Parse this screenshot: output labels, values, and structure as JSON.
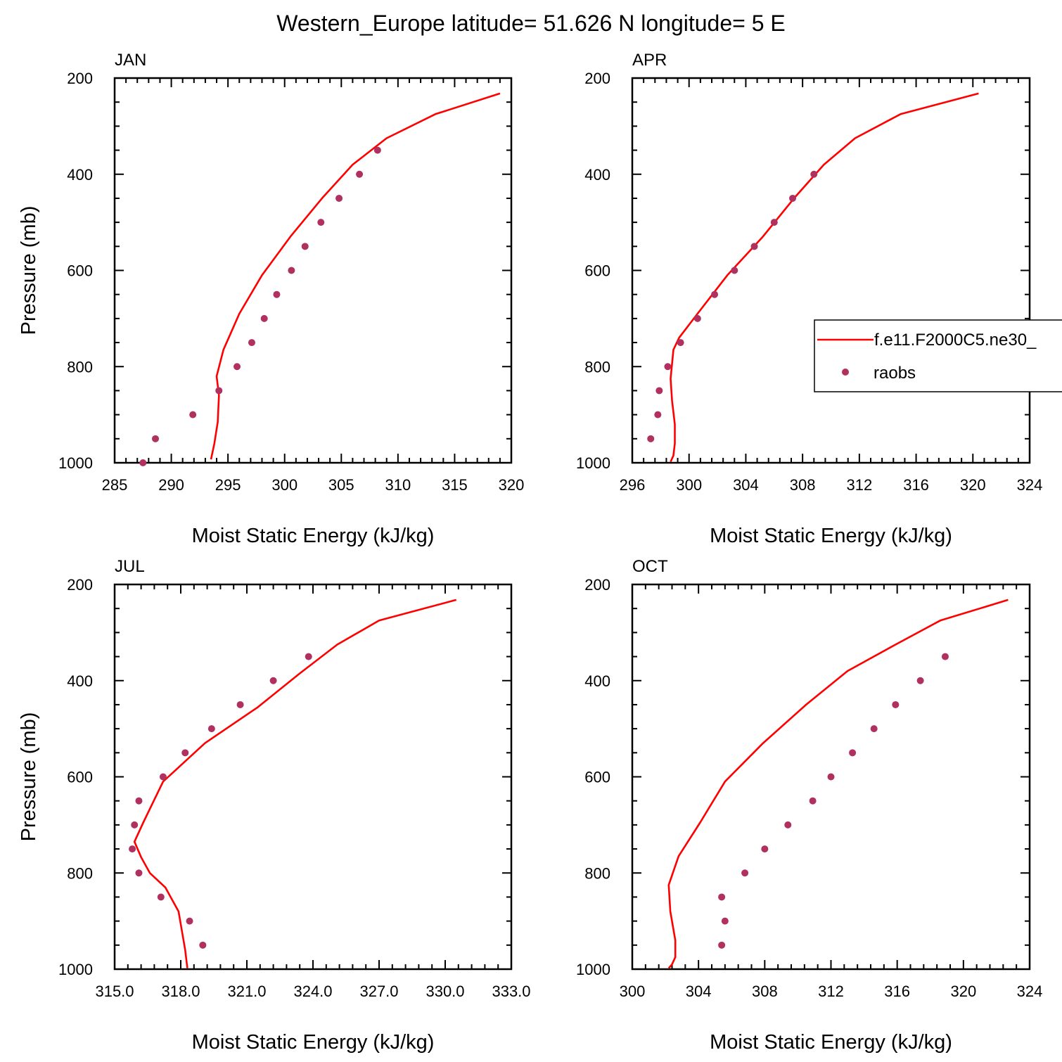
{
  "title": "Western_Europe  latitude= 51.626 N longitude= 5 E",
  "legend": {
    "model_label": "f.e11.F2000C5.ne30_",
    "obs_label": "raobs",
    "model_color": "#ff0000",
    "obs_color": "#b03060"
  },
  "chart_data": [
    {
      "type": "line",
      "panel": "JAN",
      "xlabel": "Moist Static Energy (kJ/kg)",
      "ylabel": "Pressure (mb)",
      "xlim": [
        285,
        320
      ],
      "ylim": [
        200,
        1000
      ],
      "xticks": [
        "285",
        "290",
        "295",
        "300",
        "305",
        "310",
        "315",
        "320"
      ],
      "yticks": [
        "200",
        "400",
        "600",
        "800",
        "1000"
      ],
      "series": [
        {
          "name": "f.e11.F2000C5.ne30_",
          "x": [
            319.0,
            313.3,
            309.0,
            306.0,
            303.3,
            300.5,
            298.0,
            296.0,
            294.6,
            294.0,
            294.2,
            294.1,
            293.8,
            293.5
          ],
          "p": [
            232,
            275,
            325,
            380,
            450,
            530,
            610,
            690,
            765,
            820,
            860,
            915,
            960,
            993
          ]
        },
        {
          "name": "raobs",
          "x": [
            308.2,
            306.6,
            304.8,
            303.2,
            301.8,
            300.6,
            299.3,
            298.2,
            297.1,
            295.8,
            294.2,
            291.9,
            288.6,
            287.5
          ],
          "p": [
            350,
            400,
            450,
            500,
            550,
            600,
            650,
            700,
            750,
            800,
            850,
            900,
            950,
            1000
          ]
        }
      ]
    },
    {
      "type": "line",
      "panel": "APR",
      "xlabel": "Moist Static Energy (kJ/kg)",
      "ylabel": "",
      "xlim": [
        296,
        324
      ],
      "ylim": [
        200,
        1000
      ],
      "xticks": [
        "296",
        "300",
        "304",
        "308",
        "312",
        "316",
        "320",
        "324"
      ],
      "yticks": [
        "200",
        "400",
        "600",
        "800",
        "1000"
      ],
      "series": [
        {
          "name": "f.e11.F2000C5.ne30_",
          "x": [
            320.4,
            314.9,
            311.7,
            309.5,
            307.4,
            305.2,
            302.7,
            300.6,
            299.3,
            298.9,
            298.7,
            298.8,
            299.0,
            299.0,
            298.9,
            298.7
          ],
          "p": [
            232,
            275,
            325,
            380,
            450,
            530,
            610,
            690,
            740,
            765,
            825,
            870,
            920,
            960,
            985,
            998
          ]
        },
        {
          "name": "raobs",
          "x": [
            308.8,
            307.3,
            306.0,
            304.6,
            303.2,
            301.8,
            300.6,
            299.4,
            298.5,
            297.9,
            297.8,
            297.3
          ],
          "p": [
            400,
            450,
            500,
            550,
            600,
            650,
            700,
            750,
            800,
            850,
            900,
            950
          ]
        }
      ]
    },
    {
      "type": "line",
      "panel": "JUL",
      "xlabel": "Moist Static Energy (kJ/kg)",
      "ylabel": "Pressure (mb)",
      "xlim": [
        315.0,
        333.0
      ],
      "ylim": [
        200,
        1000
      ],
      "xticks": [
        "315.0",
        "318.0",
        "321.0",
        "324.0",
        "327.0",
        "330.0",
        "333.0"
      ],
      "yticks": [
        "200",
        "400",
        "600",
        "800",
        "1000"
      ],
      "series": [
        {
          "name": "f.e11.F2000C5.ne30_",
          "x": [
            330.5,
            327.0,
            325.1,
            323.4,
            321.5,
            319.1,
            317.2,
            316.3,
            315.9,
            316.2,
            316.6,
            317.3,
            317.9,
            318.2,
            318.3
          ],
          "p": [
            232,
            275,
            325,
            385,
            455,
            530,
            610,
            695,
            735,
            767,
            800,
            830,
            880,
            960,
            998
          ]
        },
        {
          "name": "raobs",
          "x": [
            323.8,
            322.2,
            320.7,
            319.4,
            318.2,
            317.2,
            316.1,
            315.9,
            315.8,
            316.1,
            317.1,
            318.4,
            319.0
          ],
          "p": [
            350,
            400,
            450,
            500,
            550,
            600,
            650,
            700,
            750,
            800,
            850,
            900,
            950
          ]
        }
      ]
    },
    {
      "type": "line",
      "panel": "OCT",
      "xlabel": "Moist Static Energy (kJ/kg)",
      "ylabel": "",
      "xlim": [
        300,
        324
      ],
      "ylim": [
        200,
        1000
      ],
      "xticks": [
        "300",
        "304",
        "308",
        "312",
        "316",
        "320",
        "324"
      ],
      "yticks": [
        "200",
        "400",
        "600",
        "800",
        "1000"
      ],
      "series": [
        {
          "name": "f.e11.F2000C5.ne30_",
          "x": [
            322.7,
            318.6,
            315.9,
            313.0,
            310.5,
            307.9,
            305.6,
            304.1,
            302.8,
            302.2,
            302.3,
            302.6,
            302.6,
            302.4,
            302.2
          ],
          "p": [
            232,
            275,
            325,
            380,
            450,
            530,
            610,
            695,
            765,
            825,
            880,
            940,
            975,
            990,
            998
          ]
        },
        {
          "name": "raobs",
          "x": [
            318.9,
            317.4,
            315.9,
            314.6,
            313.3,
            312.0,
            310.9,
            309.4,
            308.0,
            306.8,
            305.4,
            305.6,
            305.4
          ],
          "p": [
            350,
            400,
            450,
            500,
            550,
            600,
            650,
            700,
            750,
            800,
            850,
            900,
            950
          ]
        }
      ]
    }
  ]
}
